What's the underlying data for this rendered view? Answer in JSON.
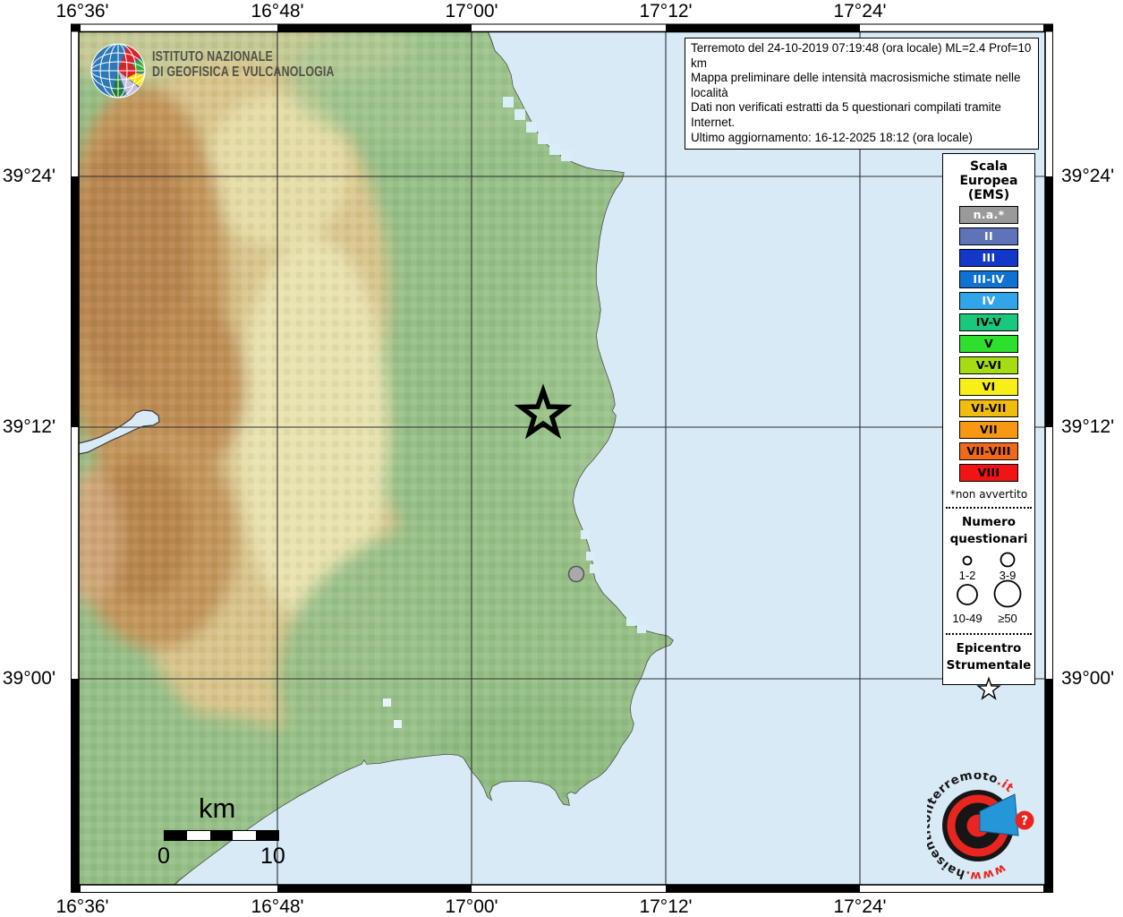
{
  "axis": {
    "top": [
      "16°36'",
      "16°48'",
      "17°00'",
      "17°12'",
      "17°24'"
    ],
    "bottom": [
      "16°36'",
      "16°48'",
      "17°00'",
      "17°12'",
      "17°24'"
    ],
    "left": [
      "39°24'",
      "39°12'",
      "39°00'"
    ],
    "right": [
      "39°24'",
      "39°12'",
      "39°00'"
    ]
  },
  "branding": {
    "institute_line1": "ISTITUTO NAZIONALE",
    "institute_line2": "DI GEOFISICA E VULCANOLOGIA"
  },
  "info_box": {
    "line1": "Terremoto del 24-10-2019 07:19:48 (ora locale) ML=2.4 Prof=10 km",
    "line2": "Mappa preliminare delle intensità macrosismiche stimate nelle località",
    "line3": "Dati non verificati estratti da 5 questionari compilati tramite Internet.",
    "line4": "Ultimo aggiornamento: 16-12-2025 18:12 (ora locale)"
  },
  "legend": {
    "title_lines": [
      "Scala",
      "Europea",
      "(EMS)"
    ],
    "ems_scale": [
      {
        "label": "n.a.*",
        "color": "#9a9a9a",
        "text": "#ffffff"
      },
      {
        "label": "II",
        "color": "#5f74b8",
        "text": "#ffffff"
      },
      {
        "label": "III",
        "color": "#1338c8",
        "text": "#ffffff"
      },
      {
        "label": "III-IV",
        "color": "#0e72d2",
        "text": "#ffffff"
      },
      {
        "label": "IV",
        "color": "#31a5ea",
        "text": "#ffffff"
      },
      {
        "label": "IV-V",
        "color": "#17c87d",
        "text": "#000000"
      },
      {
        "label": "V",
        "color": "#2ee02e",
        "text": "#000000"
      },
      {
        "label": "V-VI",
        "color": "#a6dc12",
        "text": "#000000"
      },
      {
        "label": "VI",
        "color": "#f8ee18",
        "text": "#000000"
      },
      {
        "label": "VI-VII",
        "color": "#f2bb0f",
        "text": "#000000"
      },
      {
        "label": "VII",
        "color": "#f79712",
        "text": "#000000"
      },
      {
        "label": "VII-VIII",
        "color": "#f0681a",
        "text": "#000000"
      },
      {
        "label": "VIII",
        "color": "#f01414",
        "text": "#000000"
      }
    ],
    "footnote": "*non avvertito",
    "questionnaires_title_lines": [
      "Numero",
      "questionari"
    ],
    "questionnaire_sizes": [
      {
        "label": "1-2"
      },
      {
        "label": "3-9"
      },
      {
        "label": "10-49"
      },
      {
        "label": "≥50"
      }
    ],
    "epicenter_title_lines": [
      "Epicentro",
      "Strumentale"
    ]
  },
  "scale_bar": {
    "unit": "km",
    "start_label": "0",
    "end_label": "10"
  },
  "watermark": {
    "prefix": "www.",
    "main": "haisentitoilterremoto",
    "suffix": ".it",
    "badge": "?"
  },
  "map": {
    "sea_color": "#d8eaf6",
    "land_color": "#97bf88",
    "locality_dot_color": "#a9a9a9",
    "epicenter_marker": "star",
    "locality_marker": "gray-circle-na"
  }
}
